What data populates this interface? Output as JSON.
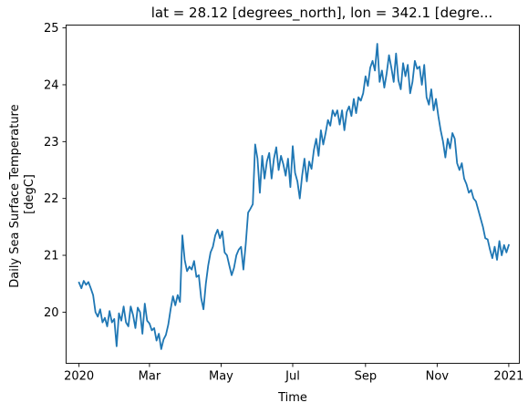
{
  "chart_data": {
    "type": "line",
    "title": "lat = 28.12 [degrees_north], lon = 342.1 [degre...",
    "xlabel": "Time",
    "ylabel_lines": [
      "Daily Sea Surface Temperature",
      "[degC]"
    ],
    "x_range": [
      "2019-12-21",
      "2021-01-10"
    ],
    "xlim": [
      -11,
      375
    ],
    "ylim": [
      19.1,
      25.05
    ],
    "grid": false,
    "x_ticks": [
      {
        "label": "2020",
        "day": 0
      },
      {
        "label": "Mar",
        "day": 60
      },
      {
        "label": "May",
        "day": 121
      },
      {
        "label": "Jul",
        "day": 182
      },
      {
        "label": "Sep",
        "day": 244
      },
      {
        "label": "Nov",
        "day": 305
      },
      {
        "label": "2021",
        "day": 366
      }
    ],
    "y_ticks": [
      {
        "label": "20",
        "value": 20
      },
      {
        "label": "21",
        "value": 21
      },
      {
        "label": "22",
        "value": 22
      },
      {
        "label": "23",
        "value": 23
      },
      {
        "label": "24",
        "value": 24
      },
      {
        "label": "25",
        "value": 25
      }
    ],
    "series": [
      {
        "color": "#1f77b4",
        "points": [
          [
            0,
            20.52
          ],
          [
            2,
            20.42
          ],
          [
            4,
            20.55
          ],
          [
            6,
            20.48
          ],
          [
            8,
            20.53
          ],
          [
            10,
            20.42
          ],
          [
            12,
            20.3
          ],
          [
            14,
            20.0
          ],
          [
            16,
            19.92
          ],
          [
            18,
            20.05
          ],
          [
            20,
            19.82
          ],
          [
            22,
            19.9
          ],
          [
            24,
            19.75
          ],
          [
            26,
            20.02
          ],
          [
            28,
            19.82
          ],
          [
            30,
            19.88
          ],
          [
            32,
            19.4
          ],
          [
            34,
            19.98
          ],
          [
            36,
            19.85
          ],
          [
            38,
            20.1
          ],
          [
            40,
            19.82
          ],
          [
            42,
            19.75
          ],
          [
            44,
            20.1
          ],
          [
            46,
            19.95
          ],
          [
            48,
            19.72
          ],
          [
            50,
            20.08
          ],
          [
            52,
            20.0
          ],
          [
            54,
            19.62
          ],
          [
            56,
            20.15
          ],
          [
            58,
            19.85
          ],
          [
            60,
            19.8
          ],
          [
            62,
            19.68
          ],
          [
            64,
            19.72
          ],
          [
            66,
            19.5
          ],
          [
            68,
            19.62
          ],
          [
            70,
            19.35
          ],
          [
            72,
            19.52
          ],
          [
            74,
            19.6
          ],
          [
            76,
            19.78
          ],
          [
            78,
            20.05
          ],
          [
            80,
            20.28
          ],
          [
            82,
            20.12
          ],
          [
            84,
            20.3
          ],
          [
            86,
            20.18
          ],
          [
            88,
            21.35
          ],
          [
            90,
            20.92
          ],
          [
            92,
            20.72
          ],
          [
            94,
            20.8
          ],
          [
            96,
            20.75
          ],
          [
            98,
            20.9
          ],
          [
            100,
            20.62
          ],
          [
            102,
            20.65
          ],
          [
            104,
            20.25
          ],
          [
            106,
            20.05
          ],
          [
            108,
            20.5
          ],
          [
            110,
            20.82
          ],
          [
            112,
            21.05
          ],
          [
            114,
            21.15
          ],
          [
            116,
            21.35
          ],
          [
            118,
            21.45
          ],
          [
            120,
            21.3
          ],
          [
            122,
            21.42
          ],
          [
            124,
            21.05
          ],
          [
            126,
            21.0
          ],
          [
            128,
            20.82
          ],
          [
            130,
            20.65
          ],
          [
            132,
            20.78
          ],
          [
            134,
            21.0
          ],
          [
            136,
            21.1
          ],
          [
            138,
            21.15
          ],
          [
            140,
            20.75
          ],
          [
            142,
            21.2
          ],
          [
            144,
            21.75
          ],
          [
            146,
            21.82
          ],
          [
            148,
            21.9
          ],
          [
            150,
            22.95
          ],
          [
            152,
            22.7
          ],
          [
            154,
            22.1
          ],
          [
            156,
            22.75
          ],
          [
            158,
            22.35
          ],
          [
            160,
            22.65
          ],
          [
            162,
            22.8
          ],
          [
            164,
            22.35
          ],
          [
            166,
            22.7
          ],
          [
            168,
            22.9
          ],
          [
            170,
            22.5
          ],
          [
            172,
            22.75
          ],
          [
            174,
            22.6
          ],
          [
            176,
            22.4
          ],
          [
            178,
            22.7
          ],
          [
            180,
            22.2
          ],
          [
            182,
            22.92
          ],
          [
            184,
            22.45
          ],
          [
            186,
            22.3
          ],
          [
            188,
            22.0
          ],
          [
            190,
            22.4
          ],
          [
            192,
            22.7
          ],
          [
            194,
            22.3
          ],
          [
            196,
            22.65
          ],
          [
            198,
            22.52
          ],
          [
            200,
            22.85
          ],
          [
            202,
            23.05
          ],
          [
            204,
            22.75
          ],
          [
            206,
            23.2
          ],
          [
            208,
            22.95
          ],
          [
            210,
            23.15
          ],
          [
            212,
            23.38
          ],
          [
            214,
            23.28
          ],
          [
            216,
            23.55
          ],
          [
            218,
            23.45
          ],
          [
            220,
            23.55
          ],
          [
            222,
            23.3
          ],
          [
            224,
            23.55
          ],
          [
            226,
            23.2
          ],
          [
            228,
            23.52
          ],
          [
            230,
            23.62
          ],
          [
            232,
            23.45
          ],
          [
            234,
            23.75
          ],
          [
            236,
            23.5
          ],
          [
            238,
            23.78
          ],
          [
            240,
            23.72
          ],
          [
            242,
            23.85
          ],
          [
            244,
            24.15
          ],
          [
            246,
            23.98
          ],
          [
            248,
            24.3
          ],
          [
            250,
            24.42
          ],
          [
            252,
            24.25
          ],
          [
            254,
            24.72
          ],
          [
            256,
            24.05
          ],
          [
            258,
            24.25
          ],
          [
            260,
            23.95
          ],
          [
            262,
            24.2
          ],
          [
            264,
            24.52
          ],
          [
            266,
            24.3
          ],
          [
            268,
            24.05
          ],
          [
            270,
            24.55
          ],
          [
            272,
            24.08
          ],
          [
            274,
            23.92
          ],
          [
            276,
            24.38
          ],
          [
            278,
            24.15
          ],
          [
            280,
            24.35
          ],
          [
            282,
            23.85
          ],
          [
            284,
            24.05
          ],
          [
            286,
            24.42
          ],
          [
            288,
            24.28
          ],
          [
            290,
            24.32
          ],
          [
            292,
            24.0
          ],
          [
            294,
            24.35
          ],
          [
            296,
            23.78
          ],
          [
            298,
            23.65
          ],
          [
            300,
            23.92
          ],
          [
            302,
            23.55
          ],
          [
            304,
            23.75
          ],
          [
            306,
            23.45
          ],
          [
            308,
            23.2
          ],
          [
            310,
            23.0
          ],
          [
            312,
            22.72
          ],
          [
            314,
            23.05
          ],
          [
            316,
            22.88
          ],
          [
            318,
            23.15
          ],
          [
            320,
            23.05
          ],
          [
            322,
            22.62
          ],
          [
            324,
            22.5
          ],
          [
            326,
            22.62
          ],
          [
            328,
            22.35
          ],
          [
            330,
            22.25
          ],
          [
            332,
            22.1
          ],
          [
            334,
            22.15
          ],
          [
            336,
            22.0
          ],
          [
            338,
            21.95
          ],
          [
            340,
            21.8
          ],
          [
            342,
            21.65
          ],
          [
            344,
            21.5
          ],
          [
            346,
            21.3
          ],
          [
            348,
            21.28
          ],
          [
            350,
            21.1
          ],
          [
            352,
            20.95
          ],
          [
            354,
            21.15
          ],
          [
            356,
            20.92
          ],
          [
            358,
            21.25
          ],
          [
            360,
            21.0
          ],
          [
            362,
            21.18
          ],
          [
            364,
            21.05
          ],
          [
            366,
            21.18
          ]
        ]
      }
    ]
  }
}
